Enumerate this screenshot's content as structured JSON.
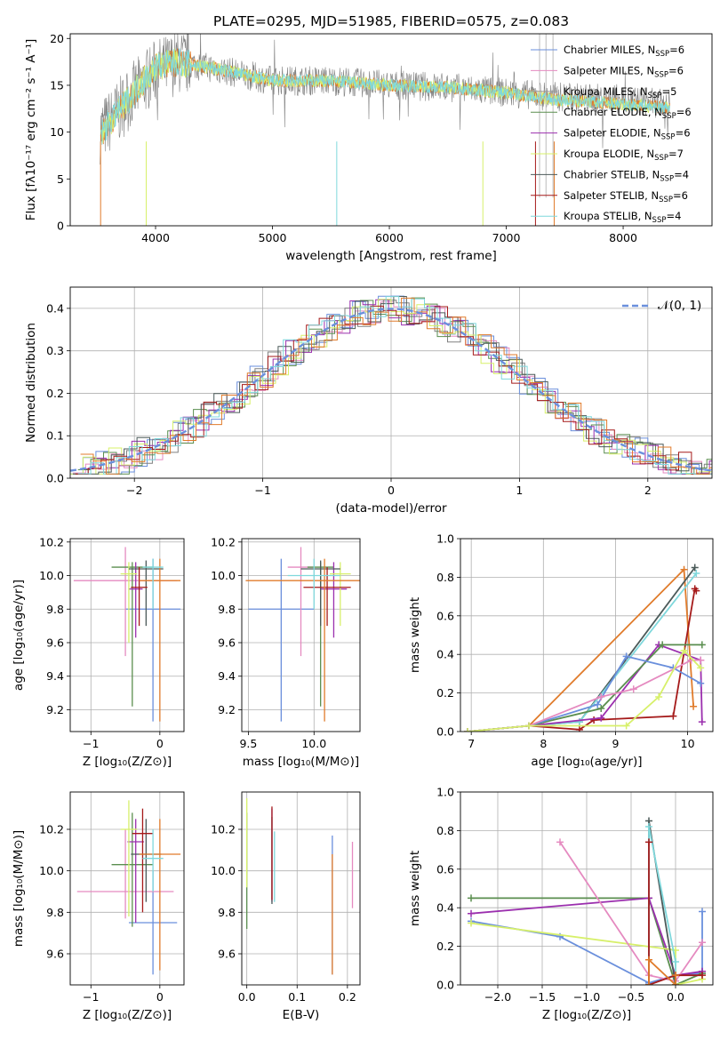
{
  "title": "PLATE=0295, MJD=51985, FIBERID=0575, z=0.083",
  "colors": {
    "cyan": "#7fd8dc",
    "orange": "#e07b2b",
    "blue": "#6a8fdc",
    "pink": "#e58ac0",
    "purple": "#9b2fae",
    "yellow": "#d7f06a",
    "darkgray": "#4b5a59",
    "red": "#a51a1a",
    "green": "#5a8e4f",
    "gray": "#808080",
    "grid": "#b0b0b0"
  },
  "legend_spectrum": [
    {
      "main": "Chabrier MILES, N",
      "sub": "SSP",
      "end": "=6",
      "color": "#6a8fdc"
    },
    {
      "main": "Salpeter MILES, N",
      "sub": "SSP",
      "end": "=6",
      "color": "#e58ac0"
    },
    {
      "main": "Kroupa MILES, N",
      "sub": "SSP",
      "end": "=5",
      "color": "#9a9a9a"
    },
    {
      "main": "Chabrier ELODIE, N",
      "sub": "SSP",
      "end": "=6",
      "color": "#5a8e4f"
    },
    {
      "main": "Salpeter ELODIE, N",
      "sub": "SSP",
      "end": "=6",
      "color": "#9b2fae"
    },
    {
      "main": "Kroupa ELODIE, N",
      "sub": "SSP",
      "end": "=7",
      "color": "#d7f06a"
    },
    {
      "main": "Chabrier STELIB, N",
      "sub": "SSP",
      "end": "=4",
      "color": "#4b5a59"
    },
    {
      "main": "Salpeter STELIB, N",
      "sub": "SSP",
      "end": "=6",
      "color": "#a51a1a"
    },
    {
      "main": "Kroupa STELIB, N",
      "sub": "SSP",
      "end": "=4",
      "color": "#7fd8dc"
    }
  ],
  "legend_normal": "𝒩(0, 1)",
  "chart_data": [
    {
      "id": "spectrum",
      "type": "line",
      "title": "PLATE=0295, MJD=51985, FIBERID=0575, z=0.083",
      "xlabel": "wavelength [Angstrom, rest frame]",
      "ylabel": "Flux [fλ10⁻¹⁷ erg cm⁻² s⁻¹ A⁻¹]",
      "xlim": [
        3270,
        8760
      ],
      "ylim": [
        0,
        20.5
      ],
      "xticks": [
        4000,
        5000,
        6000,
        7000,
        8000
      ],
      "yticks": [
        0,
        5,
        10,
        15,
        20
      ],
      "grid": false,
      "legend_position": "right",
      "data_envelope_x": [
        3520,
        3600,
        3800,
        4000,
        4200,
        4500,
        5000,
        5500,
        6000,
        6500,
        7000,
        7400,
        8000,
        8500
      ],
      "data_envelope_y": [
        10,
        11,
        14,
        16.5,
        17.5,
        16.8,
        15.5,
        15.5,
        15,
        14.8,
        14.2,
        13.8,
        13.5,
        12.8
      ],
      "models_envelope_y": [
        9.5,
        11,
        14,
        17,
        17.5,
        16.8,
        15.5,
        15.5,
        15,
        14.8,
        14.2,
        13.5,
        13,
        12.5
      ]
    },
    {
      "id": "residuals",
      "type": "histogram",
      "xlabel": "(data-model)/error",
      "ylabel": "Normed distribution",
      "xlim": [
        -2.5,
        2.5
      ],
      "ylim": [
        0,
        0.45
      ],
      "xticks": [
        -2,
        -1,
        0,
        1,
        2
      ],
      "yticks": [
        0,
        0.1,
        0.2,
        0.3,
        0.4
      ],
      "grid": true,
      "legend_position": "top-right",
      "reference": {
        "name": "𝒩(0, 1)",
        "mu": 0,
        "sigma": 1
      }
    },
    {
      "id": "age_vs_Z",
      "type": "errorbar",
      "xlabel": "Z [log₁₀(Z/Z⊙)]",
      "ylabel": "age  [log₁₀(age/yr)]",
      "xlim": [
        -1.3,
        0.35
      ],
      "ylim": [
        9.07,
        10.22
      ],
      "xticks": [
        -1,
        0
      ],
      "xticklabels": [
        "−1",
        "0"
      ],
      "yticks": [
        9.2,
        9.4,
        9.6,
        9.8,
        10.0,
        10.2
      ],
      "grid": true,
      "points": [
        {
          "x": -0.1,
          "y": 9.8,
          "xerr": 0.4,
          "ylo": 9.13,
          "yhi": 10.1,
          "c": "#6a8fdc"
        },
        {
          "x": -0.5,
          "y": 9.97,
          "xerr": 0.75,
          "ylo": 9.52,
          "yhi": 10.17,
          "c": "#e58ac0"
        },
        {
          "x": -0.4,
          "y": 10.05,
          "xerr": 0.3,
          "ylo": 9.22,
          "yhi": 10.08,
          "c": "#5a8e4f"
        },
        {
          "x": -0.35,
          "y": 9.92,
          "xerr": 0.1,
          "ylo": 9.63,
          "yhi": 10.08,
          "c": "#9b2fae"
        },
        {
          "x": -0.45,
          "y": 10.01,
          "xerr": 0.12,
          "ylo": 9.6,
          "yhi": 10.08,
          "c": "#d7f06a"
        },
        {
          "x": -0.2,
          "y": 10.04,
          "xerr": 0.25,
          "ylo": 9.7,
          "yhi": 10.09,
          "c": "#4b5a59"
        },
        {
          "x": -0.3,
          "y": 9.93,
          "xerr": 0.12,
          "ylo": 9.7,
          "yhi": 10.05,
          "c": "#a51a1a"
        },
        {
          "x": 0.0,
          "y": 9.97,
          "xerr": 0.3,
          "ylo": 9.13,
          "yhi": 10.1,
          "c": "#e07b2b"
        },
        {
          "x": -0.1,
          "y": 10.05,
          "xerr": 0.15,
          "ylo": 9.8,
          "yhi": 10.1,
          "c": "#7fd8dc"
        }
      ]
    },
    {
      "id": "age_vs_mass",
      "type": "errorbar",
      "xlabel": "mass [log₁₀(M/M⊙)]",
      "ylabel": "",
      "xlim": [
        9.45,
        10.35
      ],
      "ylim": [
        9.07,
        10.22
      ],
      "xticks": [
        9.5,
        10.0
      ],
      "xticklabels": [
        "9.5",
        "10.0"
      ],
      "yticks": [
        9.2,
        9.4,
        9.6,
        9.8,
        10.0,
        10.2
      ],
      "grid": true,
      "points": [
        {
          "x": 9.75,
          "y": 9.8,
          "xerr": 0.25,
          "ylo": 9.13,
          "yhi": 10.1,
          "c": "#6a8fdc"
        },
        {
          "x": 9.9,
          "y": 10.05,
          "xerr": 0.1,
          "ylo": 9.52,
          "yhi": 10.17,
          "c": "#e58ac0"
        },
        {
          "x": 10.05,
          "y": 10.05,
          "xerr": 0.1,
          "ylo": 9.22,
          "yhi": 10.08,
          "c": "#5a8e4f"
        },
        {
          "x": 10.15,
          "y": 9.92,
          "xerr": 0.1,
          "ylo": 9.63,
          "yhi": 10.08,
          "c": "#9b2fae"
        },
        {
          "x": 10.2,
          "y": 10.01,
          "xerr": 0.08,
          "ylo": 9.7,
          "yhi": 10.08,
          "c": "#d7f06a"
        },
        {
          "x": 10.05,
          "y": 10.04,
          "xerr": 0.15,
          "ylo": 9.7,
          "yhi": 10.09,
          "c": "#4b5a59"
        },
        {
          "x": 10.1,
          "y": 9.93,
          "xerr": 0.18,
          "ylo": 9.7,
          "yhi": 10.05,
          "c": "#a51a1a"
        },
        {
          "x": 10.08,
          "y": 9.97,
          "xerr": 0.6,
          "ylo": 9.13,
          "yhi": 10.1,
          "c": "#e07b2b"
        },
        {
          "x": 10.0,
          "y": 10.0,
          "xerr": 0.2,
          "ylo": 9.8,
          "yhi": 10.1,
          "c": "#7fd8dc"
        }
      ]
    },
    {
      "id": "mass_weight_vs_age",
      "type": "line",
      "xlabel": "age  [log₁₀(age/yr)]",
      "ylabel": "mass weight",
      "xlim": [
        6.85,
        10.35
      ],
      "ylim": [
        0,
        1.0
      ],
      "xticks": [
        7,
        8,
        9,
        10
      ],
      "yticks": [
        0,
        0.2,
        0.4,
        0.6,
        0.8,
        1.0
      ],
      "grid": true,
      "series": [
        {
          "c": "#e07b2b",
          "x": [
            6.95,
            7.8,
            9.95,
            10.08
          ],
          "y": [
            0.0,
            0.03,
            0.84,
            0.13
          ]
        },
        {
          "c": "#4b5a59",
          "x": [
            6.95,
            7.8,
            8.5,
            10.1
          ],
          "y": [
            0.0,
            0.03,
            0.05,
            0.85
          ]
        },
        {
          "c": "#7fd8dc",
          "x": [
            6.95,
            7.8,
            8.5,
            10.12
          ],
          "y": [
            0.0,
            0.03,
            0.05,
            0.82
          ]
        },
        {
          "c": "#a51a1a",
          "x": [
            6.95,
            7.8,
            8.5,
            8.7,
            9.8,
            10.1,
            10.12
          ],
          "y": [
            0.0,
            0.03,
            0.01,
            0.06,
            0.08,
            0.74,
            0.73
          ]
        },
        {
          "c": "#9b2fae",
          "x": [
            6.95,
            7.8,
            8.8,
            9.6,
            10.18,
            10.2
          ],
          "y": [
            0.0,
            0.03,
            0.07,
            0.45,
            0.37,
            0.05
          ]
        },
        {
          "c": "#5a8e4f",
          "x": [
            6.95,
            7.8,
            8.8,
            9.65,
            10.2
          ],
          "y": [
            0.0,
            0.03,
            0.12,
            0.45,
            0.45
          ]
        },
        {
          "c": "#6a8fdc",
          "x": [
            6.95,
            7.8,
            8.75,
            9.15,
            9.8,
            10.18
          ],
          "y": [
            0.0,
            0.03,
            0.14,
            0.39,
            0.33,
            0.25
          ]
        },
        {
          "c": "#e58ac0",
          "x": [
            6.95,
            7.8,
            8.8,
            9.25,
            10.05,
            10.18
          ],
          "y": [
            0.0,
            0.03,
            0.18,
            0.22,
            0.37,
            0.37
          ]
        },
        {
          "c": "#d7f06a",
          "x": [
            6.95,
            7.8,
            9.15,
            9.6,
            9.95,
            10.18
          ],
          "y": [
            0.0,
            0.03,
            0.03,
            0.18,
            0.42,
            0.33
          ]
        }
      ]
    },
    {
      "id": "mass_vs_Z",
      "type": "errorbar",
      "xlabel": "Z [log₁₀(Z/Z⊙)]",
      "ylabel": "mass [log₁₀(M/M⊙)]",
      "xlim": [
        -1.3,
        0.35
      ],
      "ylim": [
        9.45,
        10.38
      ],
      "xticks": [
        -1,
        0
      ],
      "xticklabels": [
        "−1",
        "0"
      ],
      "yticks": [
        9.6,
        9.8,
        10.0,
        10.2
      ],
      "grid": true,
      "points": [
        {
          "x": -0.1,
          "y": 9.75,
          "xerr": 0.35,
          "ylo": 9.5,
          "yhi": 10.0,
          "c": "#6a8fdc"
        },
        {
          "x": -0.5,
          "y": 9.9,
          "xerr": 0.7,
          "ylo": 9.77,
          "yhi": 10.2,
          "c": "#e58ac0"
        },
        {
          "x": -0.4,
          "y": 10.03,
          "xerr": 0.3,
          "ylo": 9.73,
          "yhi": 10.28,
          "c": "#5a8e4f"
        },
        {
          "x": -0.35,
          "y": 10.14,
          "xerr": 0.12,
          "ylo": 9.75,
          "yhi": 10.25,
          "c": "#9b2fae"
        },
        {
          "x": -0.45,
          "y": 10.2,
          "xerr": 0.12,
          "ylo": 9.78,
          "yhi": 10.34,
          "c": "#d7f06a"
        },
        {
          "x": -0.2,
          "y": 10.08,
          "xerr": 0.22,
          "ylo": 9.85,
          "yhi": 10.25,
          "c": "#4b5a59"
        },
        {
          "x": -0.25,
          "y": 10.18,
          "xerr": 0.15,
          "ylo": 9.8,
          "yhi": 10.3,
          "c": "#a51a1a"
        },
        {
          "x": 0.0,
          "y": 10.08,
          "xerr": 0.3,
          "ylo": 9.52,
          "yhi": 10.25,
          "c": "#e07b2b"
        },
        {
          "x": -0.1,
          "y": 10.06,
          "xerr": 0.15,
          "ylo": 9.9,
          "yhi": 10.2,
          "c": "#7fd8dc"
        }
      ]
    },
    {
      "id": "mass_vs_ebv",
      "type": "errorbar",
      "xlabel": "E(B-V)",
      "ylabel": "",
      "xlim": [
        -0.01,
        0.225
      ],
      "ylim": [
        9.45,
        10.38
      ],
      "xticks": [
        0.0,
        0.1,
        0.2
      ],
      "xticklabels": [
        "0.0",
        "0.1",
        "0.2"
      ],
      "yticks": [
        9.6,
        9.8,
        10.0,
        10.2
      ],
      "grid": true,
      "points": [
        {
          "x": 0.17,
          "y": 9.75,
          "xerr": 0,
          "ylo": 9.5,
          "yhi": 10.17,
          "c": "#6a8fdc"
        },
        {
          "x": 0.21,
          "y": 9.9,
          "xerr": 0,
          "ylo": 9.82,
          "yhi": 10.14,
          "c": "#e58ac0"
        },
        {
          "x": 0.0,
          "y": 10.03,
          "xerr": 0,
          "ylo": 9.72,
          "yhi": 10.28,
          "c": "#5a8e4f"
        },
        {
          "x": 0.05,
          "y": 10.14,
          "xerr": 0,
          "ylo": 9.85,
          "yhi": 10.3,
          "c": "#9b2fae"
        },
        {
          "x": 0.0,
          "y": 10.2,
          "xerr": 0,
          "ylo": 9.92,
          "yhi": 10.35,
          "c": "#d7f06a"
        },
        {
          "x": 0.05,
          "y": 10.08,
          "xerr": 0,
          "ylo": 9.84,
          "yhi": 10.26,
          "c": "#4b5a59"
        },
        {
          "x": 0.05,
          "y": 10.18,
          "xerr": 0,
          "ylo": 9.86,
          "yhi": 10.31,
          "c": "#a51a1a"
        },
        {
          "x": 0.17,
          "y": 10.08,
          "xerr": 0,
          "ylo": 9.5,
          "yhi": 10.08,
          "c": "#e07b2b"
        },
        {
          "x": 0.055,
          "y": 10.06,
          "xerr": 0,
          "ylo": 9.85,
          "yhi": 10.19,
          "c": "#7fd8dc"
        }
      ]
    },
    {
      "id": "mass_weight_vs_Z",
      "type": "line",
      "xlabel": "Z [log₁₀(Z/Z⊙)]",
      "ylabel": "mass weight",
      "xlim": [
        -2.42,
        0.42
      ],
      "ylim": [
        0,
        1.0
      ],
      "xticks": [
        -2.0,
        -1.5,
        -1.0,
        -0.5,
        0.0
      ],
      "xticklabels": [
        "−2.0",
        "−1.5",
        "−1.0",
        "−0.5",
        "0.0"
      ],
      "yticks": [
        0,
        0.2,
        0.4,
        0.6,
        0.8,
        1.0
      ],
      "grid": true,
      "series": [
        {
          "c": "#6a8fdc",
          "x": [
            -2.3,
            -1.3,
            -0.3,
            0.0,
            0.3,
            0.3
          ],
          "y": [
            0.33,
            0.25,
            0.01,
            0.05,
            0.06,
            0.38
          ]
        },
        {
          "c": "#5a8e4f",
          "x": [
            -2.3,
            -0.3,
            0.0,
            0.3
          ],
          "y": [
            0.45,
            0.45,
            0.0,
            0.06
          ]
        },
        {
          "c": "#9b2fae",
          "x": [
            -2.3,
            -0.3,
            0.0,
            0.3
          ],
          "y": [
            0.37,
            0.45,
            0.05,
            0.07
          ]
        },
        {
          "c": "#d7f06a",
          "x": [
            -2.3,
            0.0,
            0.0,
            0.3
          ],
          "y": [
            0.32,
            0.18,
            0.0,
            0.03
          ]
        },
        {
          "c": "#e58ac0",
          "x": [
            -1.3,
            -0.3,
            0.0,
            0.3
          ],
          "y": [
            0.74,
            0.05,
            0.02,
            0.22
          ]
        },
        {
          "c": "#4b5a59",
          "x": [
            -0.3,
            -0.3,
            0.0,
            0.0
          ],
          "y": [
            0.0,
            0.85,
            0.0,
            0.05
          ]
        },
        {
          "c": "#7fd8dc",
          "x": [
            -0.3,
            -0.3,
            0.0,
            0.0
          ],
          "y": [
            0.0,
            0.82,
            0.12,
            0.05
          ]
        },
        {
          "c": "#a51a1a",
          "x": [
            -0.3,
            -0.3,
            0.0,
            0.3
          ],
          "y": [
            0.74,
            0.0,
            0.05,
            0.05
          ]
        },
        {
          "c": "#e07b2b",
          "x": [
            -0.3,
            -0.3,
            0.0,
            0.0
          ],
          "y": [
            0.0,
            0.13,
            0.0,
            0.05
          ]
        }
      ]
    }
  ]
}
